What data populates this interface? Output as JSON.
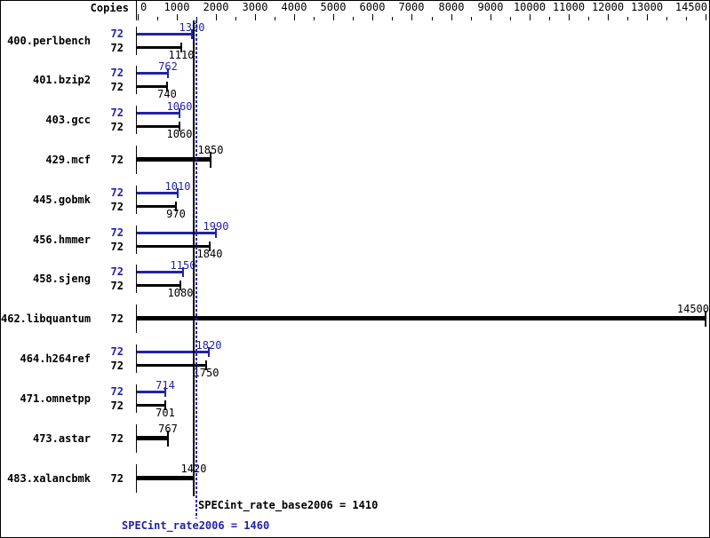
{
  "chart_data": {
    "type": "bar",
    "orientation": "horizontal",
    "copies_header": "Copies",
    "colors": {
      "peak": "#2222aa",
      "base": "#000000",
      "background": "#ffffff"
    },
    "axis": {
      "min": 0,
      "max": 14500,
      "position": "top",
      "minor_tick_step": 500,
      "major_tick_values": [
        0,
        1000,
        2000,
        3000,
        4000,
        5000,
        6000,
        7000,
        8000,
        9000,
        10000,
        11000,
        12000,
        13000,
        14500
      ],
      "major_tick_labels": [
        "0",
        "1000",
        "2000",
        "3000",
        "4000",
        "5000",
        "6000",
        "7000",
        "8000",
        "9000",
        "10000",
        "11000",
        "12000",
        "13000",
        "14500"
      ]
    },
    "benchmarks": [
      {
        "name": "400.perlbench",
        "copies": 72,
        "peak": 1390,
        "base": 1110,
        "single_bar": false
      },
      {
        "name": "401.bzip2",
        "copies": 72,
        "peak": 762,
        "base": 740,
        "single_bar": false
      },
      {
        "name": "403.gcc",
        "copies": 72,
        "peak": 1060,
        "base": 1060,
        "single_bar": false
      },
      {
        "name": "429.mcf",
        "copies": 72,
        "peak": null,
        "base": 1850,
        "single_bar": true
      },
      {
        "name": "445.gobmk",
        "copies": 72,
        "peak": 1010,
        "base": 970,
        "single_bar": false
      },
      {
        "name": "456.hmmer",
        "copies": 72,
        "peak": 1990,
        "base": 1840,
        "single_bar": false
      },
      {
        "name": "458.sjeng",
        "copies": 72,
        "peak": 1150,
        "base": 1080,
        "single_bar": false
      },
      {
        "name": "462.libquantum",
        "copies": 72,
        "peak": null,
        "base": 14500,
        "single_bar": true
      },
      {
        "name": "464.h264ref",
        "copies": 72,
        "peak": 1820,
        "base": 1750,
        "single_bar": false
      },
      {
        "name": "471.omnetpp",
        "copies": 72,
        "peak": 714,
        "base": 701,
        "single_bar": false
      },
      {
        "name": "473.astar",
        "copies": 72,
        "peak": null,
        "base": 767,
        "single_bar": true
      },
      {
        "name": "483.xalancbmk",
        "copies": 72,
        "peak": null,
        "base": 1420,
        "single_bar": true
      }
    ],
    "means": {
      "base": {
        "label": "SPECint_rate_base2006 = 1410",
        "value": 1410,
        "line_style": "solid",
        "color": "#000000"
      },
      "peak": {
        "label": "SPECint_rate2006 = 1460",
        "value": 1460,
        "line_style": "dotted",
        "color": "#2222aa"
      }
    }
  }
}
